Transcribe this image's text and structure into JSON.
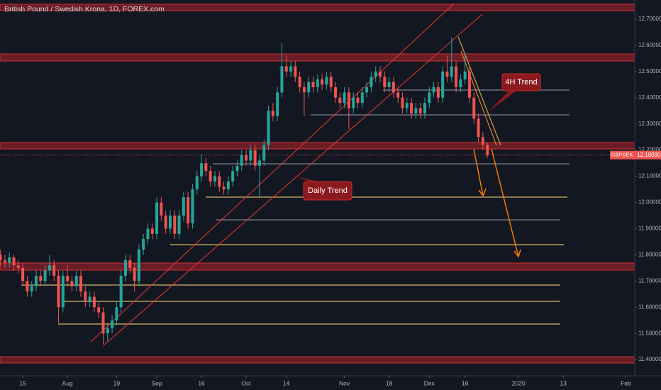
{
  "chart_data": {
    "type": "candlestick",
    "title": "British Pound / Swedish Krona, 1D, FOREX.com",
    "annotations": [
      "4H Trend",
      "Daily Trend"
    ],
    "up_color": "#26a69a",
    "down_color": "#ef5350",
    "ylim": [
      11.338,
      12.773
    ],
    "yticks": [
      {
        "value": 11.4,
        "label": "11.40000"
      },
      {
        "value": 11.5,
        "label": "11.50000"
      },
      {
        "value": 11.6,
        "label": "11.60000"
      },
      {
        "value": 11.7,
        "label": "11.70000"
      },
      {
        "value": 11.8,
        "label": "11.80000"
      },
      {
        "value": 11.9,
        "label": "11.90000"
      },
      {
        "value": 12.0,
        "label": "12.00000"
      },
      {
        "value": 12.1,
        "label": "12.10000"
      },
      {
        "value": 12.2,
        "label": "12.20000"
      },
      {
        "value": 12.3,
        "label": "12.30000"
      },
      {
        "value": 12.4,
        "label": "12.40000"
      },
      {
        "value": 12.5,
        "label": "12.50000"
      },
      {
        "value": 12.6,
        "label": "12.60000"
      },
      {
        "value": 12.7,
        "label": "12.70000"
      }
    ],
    "xlim": [
      -0.1,
      142
    ],
    "xticks": [
      {
        "value": 5,
        "label": "15"
      },
      {
        "value": 15,
        "label": "Aug"
      },
      {
        "value": 26,
        "label": "19"
      },
      {
        "value": 35,
        "label": "Sep"
      },
      {
        "value": 45,
        "label": "16"
      },
      {
        "value": 55,
        "label": "Oct"
      },
      {
        "value": 64,
        "label": "14"
      },
      {
        "value": 77,
        "label": "Nov"
      },
      {
        "value": 87,
        "label": "18"
      },
      {
        "value": 96,
        "label": "Dec"
      },
      {
        "value": 104,
        "label": "16"
      },
      {
        "value": 116,
        "label": "2020"
      },
      {
        "value": 126,
        "label": "13"
      },
      {
        "value": 140,
        "label": "Feb"
      }
    ],
    "symbol": "GBPSEK",
    "last_price": {
      "value": 12.1809,
      "label": "12.18090"
    },
    "ohlc": [
      [
        11.8,
        11.82,
        11.76,
        11.78
      ],
      [
        11.78,
        11.8,
        11.75,
        11.77
      ],
      [
        11.77,
        11.81,
        11.75,
        11.79
      ],
      [
        11.79,
        11.8,
        11.74,
        11.76
      ],
      [
        11.76,
        11.78,
        11.73,
        11.75
      ],
      [
        11.75,
        11.77,
        11.68,
        11.7
      ],
      [
        11.7,
        11.72,
        11.64,
        11.66
      ],
      [
        11.66,
        11.7,
        11.64,
        11.68
      ],
      [
        11.68,
        11.74,
        11.66,
        11.72
      ],
      [
        11.72,
        11.74,
        11.68,
        11.7
      ],
      [
        11.7,
        11.76,
        11.68,
        11.74
      ],
      [
        11.74,
        11.8,
        11.72,
        11.76
      ],
      [
        11.76,
        11.78,
        11.7,
        11.72
      ],
      [
        11.72,
        11.74,
        11.54,
        11.6
      ],
      [
        11.6,
        11.74,
        11.58,
        11.72
      ],
      [
        11.72,
        11.76,
        11.68,
        11.7
      ],
      [
        11.7,
        11.72,
        11.66,
        11.68
      ],
      [
        11.68,
        11.74,
        11.66,
        11.72
      ],
      [
        11.72,
        11.74,
        11.64,
        11.66
      ],
      [
        11.66,
        11.68,
        11.6,
        11.62
      ],
      [
        11.62,
        11.66,
        11.6,
        11.64
      ],
      [
        11.64,
        11.66,
        11.58,
        11.6
      ],
      [
        11.6,
        11.62,
        11.56,
        11.58
      ],
      [
        11.58,
        11.6,
        11.46,
        11.5
      ],
      [
        11.5,
        11.54,
        11.47,
        11.52
      ],
      [
        11.52,
        11.57,
        11.5,
        11.55
      ],
      [
        11.55,
        11.62,
        11.53,
        11.6
      ],
      [
        11.6,
        11.74,
        11.58,
        11.72
      ],
      [
        11.72,
        11.8,
        11.7,
        11.78
      ],
      [
        11.78,
        11.8,
        11.73,
        11.75
      ],
      [
        11.75,
        11.77,
        11.66,
        11.7
      ],
      [
        11.7,
        11.84,
        11.68,
        11.82
      ],
      [
        11.82,
        11.88,
        11.8,
        11.86
      ],
      [
        11.86,
        11.92,
        11.84,
        11.9
      ],
      [
        11.9,
        11.92,
        11.86,
        11.88
      ],
      [
        11.88,
        12.02,
        11.86,
        12.0
      ],
      [
        12.0,
        12.02,
        11.93,
        11.95
      ],
      [
        11.95,
        11.97,
        11.88,
        11.9
      ],
      [
        11.9,
        11.97,
        11.88,
        11.95
      ],
      [
        11.95,
        11.97,
        11.86,
        11.88
      ],
      [
        11.88,
        11.97,
        11.86,
        11.95
      ],
      [
        11.95,
        12.04,
        11.93,
        12.02
      ],
      [
        12.02,
        12.04,
        11.9,
        11.92
      ],
      [
        11.92,
        12.07,
        11.9,
        12.05
      ],
      [
        12.05,
        12.12,
        12.03,
        12.1
      ],
      [
        12.1,
        12.18,
        12.08,
        12.15
      ],
      [
        12.15,
        12.17,
        12.1,
        12.12
      ],
      [
        12.12,
        12.14,
        12.06,
        12.08
      ],
      [
        12.08,
        12.12,
        12.06,
        12.1
      ],
      [
        12.1,
        12.12,
        12.04,
        12.06
      ],
      [
        12.06,
        12.08,
        12.03,
        12.05
      ],
      [
        12.05,
        12.1,
        12.03,
        12.08
      ],
      [
        12.08,
        12.14,
        12.06,
        12.12
      ],
      [
        12.12,
        12.16,
        12.1,
        12.14
      ],
      [
        12.14,
        12.2,
        12.12,
        12.18
      ],
      [
        12.18,
        12.2,
        12.14,
        12.16
      ],
      [
        12.16,
        12.22,
        12.14,
        12.2
      ],
      [
        12.2,
        12.22,
        12.12,
        12.14
      ],
      [
        12.14,
        12.18,
        12.02,
        12.16
      ],
      [
        12.16,
        12.24,
        12.14,
        12.22
      ],
      [
        12.22,
        12.37,
        12.2,
        12.35
      ],
      [
        12.35,
        12.38,
        12.31,
        12.33
      ],
      [
        12.33,
        12.44,
        12.31,
        12.42
      ],
      [
        12.42,
        12.61,
        12.4,
        12.52
      ],
      [
        12.52,
        12.56,
        12.48,
        12.5
      ],
      [
        12.5,
        12.54,
        12.48,
        12.52
      ],
      [
        12.52,
        12.54,
        12.46,
        12.48
      ],
      [
        12.48,
        12.5,
        12.42,
        12.44
      ],
      [
        12.44,
        12.46,
        12.33,
        12.42
      ],
      [
        12.42,
        12.48,
        12.4,
        12.46
      ],
      [
        12.46,
        12.48,
        12.42,
        12.44
      ],
      [
        12.44,
        12.49,
        12.42,
        12.47
      ],
      [
        12.47,
        12.49,
        12.43,
        12.45
      ],
      [
        12.45,
        12.5,
        12.43,
        12.48
      ],
      [
        12.48,
        12.5,
        12.42,
        12.44
      ],
      [
        12.44,
        12.46,
        12.38,
        12.4
      ],
      [
        12.4,
        12.42,
        12.36,
        12.38
      ],
      [
        12.38,
        12.44,
        12.36,
        12.42
      ],
      [
        12.42,
        12.44,
        12.28,
        12.36
      ],
      [
        12.36,
        12.42,
        12.34,
        12.4
      ],
      [
        12.4,
        12.42,
        12.36,
        12.38
      ],
      [
        12.38,
        12.44,
        12.36,
        12.42
      ],
      [
        12.42,
        12.46,
        12.4,
        12.44
      ],
      [
        12.44,
        12.5,
        12.42,
        12.48
      ],
      [
        12.48,
        12.52,
        12.46,
        12.5
      ],
      [
        12.5,
        12.52,
        12.46,
        12.48
      ],
      [
        12.48,
        12.5,
        12.42,
        12.44
      ],
      [
        12.44,
        12.48,
        12.42,
        12.46
      ],
      [
        12.46,
        12.48,
        12.4,
        12.42
      ],
      [
        12.42,
        12.44,
        12.38,
        12.4
      ],
      [
        12.4,
        12.42,
        12.34,
        12.36
      ],
      [
        12.36,
        12.4,
        12.34,
        12.38
      ],
      [
        12.38,
        12.4,
        12.32,
        12.34
      ],
      [
        12.34,
        12.38,
        12.32,
        12.36
      ],
      [
        12.36,
        12.38,
        12.32,
        12.34
      ],
      [
        12.34,
        12.4,
        12.32,
        12.38
      ],
      [
        12.38,
        12.44,
        12.36,
        12.42
      ],
      [
        12.42,
        12.46,
        12.4,
        12.44
      ],
      [
        12.44,
        12.46,
        12.38,
        12.4
      ],
      [
        12.4,
        12.52,
        12.38,
        12.5
      ],
      [
        12.5,
        12.56,
        12.46,
        12.48
      ],
      [
        12.48,
        12.63,
        12.46,
        12.52
      ],
      [
        12.52,
        12.54,
        12.42,
        12.44
      ],
      [
        12.44,
        12.49,
        12.42,
        12.47
      ],
      [
        12.47,
        12.57,
        12.45,
        12.5
      ],
      [
        12.5,
        12.52,
        12.38,
        12.4
      ],
      [
        12.4,
        12.42,
        12.3,
        12.32
      ],
      [
        12.32,
        12.34,
        12.23,
        12.25
      ],
      [
        12.25,
        12.27,
        12.2,
        12.22
      ],
      [
        12.22,
        12.23,
        12.17,
        12.1809
      ]
    ]
  }
}
